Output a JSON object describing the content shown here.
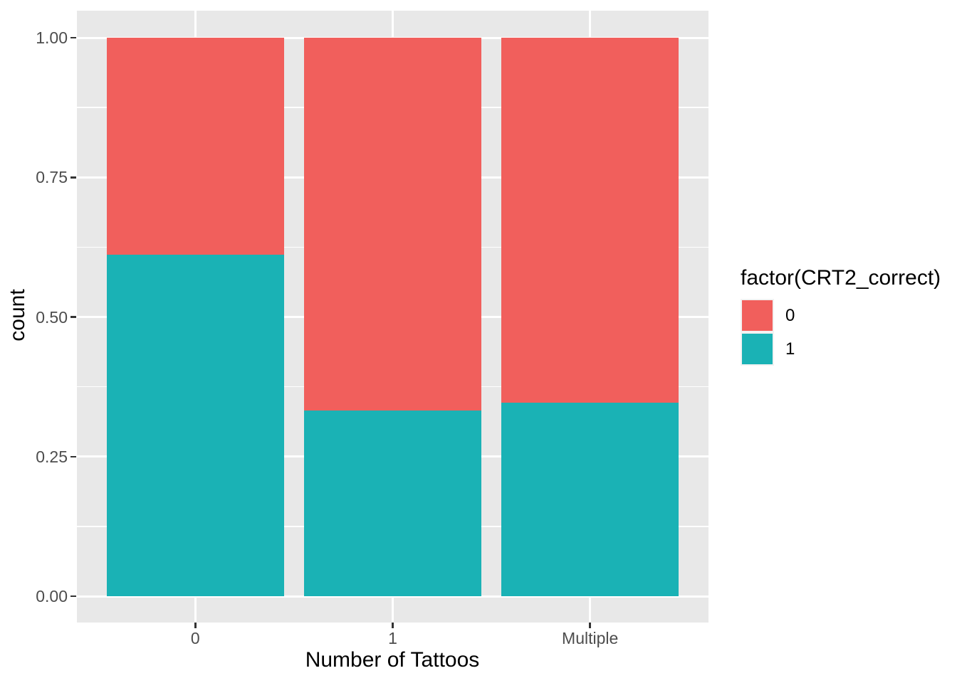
{
  "chart_data": {
    "type": "bar",
    "subtype": "stacked-fill-proportion",
    "title": "",
    "xlabel": "Number of Tattoos",
    "ylabel": "count",
    "categories": [
      "0",
      "1",
      "Multiple"
    ],
    "series": [
      {
        "name": "1",
        "color": "#1AB2B5",
        "values": [
          0.611,
          0.333,
          0.347
        ]
      },
      {
        "name": "0",
        "color": "#F15F5C",
        "values": [
          0.389,
          0.667,
          0.653
        ]
      }
    ],
    "series_order_note": "bottom-to-top stacking",
    "ylim": [
      0,
      1
    ],
    "yticks": [
      "0.00",
      "0.25",
      "0.50",
      "0.75",
      "1.00"
    ],
    "ytick_values": [
      0,
      0.25,
      0.5,
      0.75,
      1
    ],
    "yminor_values": [
      0.125,
      0.375,
      0.625,
      0.875
    ],
    "grid": true,
    "legend": {
      "title": "factor(CRT2_correct)",
      "position": "right",
      "entries": [
        {
          "label": "0",
          "color": "#F15F5C"
        },
        {
          "label": "1",
          "color": "#1AB2B5"
        }
      ]
    },
    "theme": {
      "panel_bg": "#E8E8E8",
      "grid_color": "#FFFFFF",
      "axis_text_color": "#4D4D4D",
      "axis_title_color": "#000000",
      "tick_color": "#333333",
      "legend_key_bg": "#F2F2F2",
      "background": "#FFFFFF"
    }
  }
}
